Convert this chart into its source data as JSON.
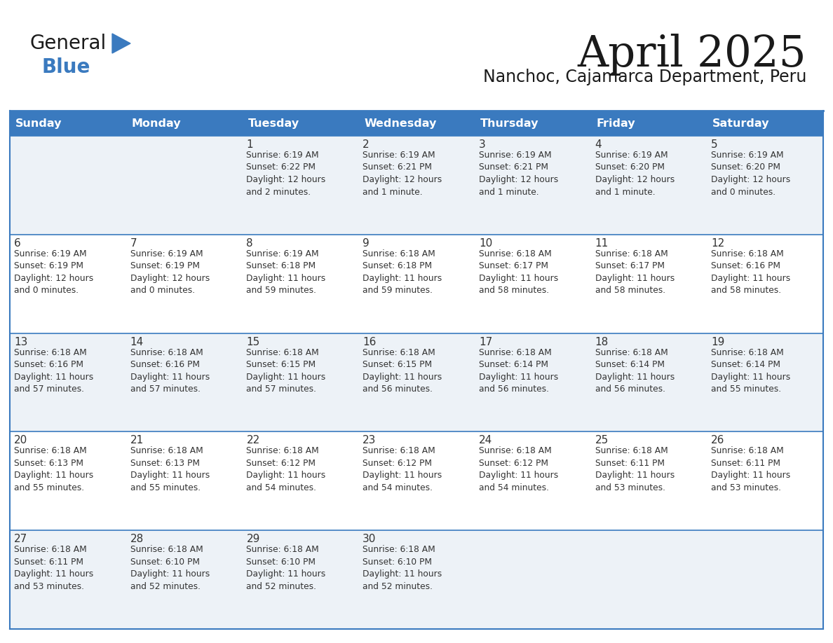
{
  "title": "April 2025",
  "subtitle": "Nanchoc, Cajamarca Department, Peru",
  "header_bg_color": "#3a7abf",
  "header_text_color": "#ffffff",
  "row_bg_odd": "#edf2f7",
  "row_bg_even": "#ffffff",
  "border_color": "#3a7abf",
  "text_color": "#333333",
  "days_of_week": [
    "Sunday",
    "Monday",
    "Tuesday",
    "Wednesday",
    "Thursday",
    "Friday",
    "Saturday"
  ],
  "calendar_data": [
    [
      "",
      "",
      "1\nSunrise: 6:19 AM\nSunset: 6:22 PM\nDaylight: 12 hours\nand 2 minutes.",
      "2\nSunrise: 6:19 AM\nSunset: 6:21 PM\nDaylight: 12 hours\nand 1 minute.",
      "3\nSunrise: 6:19 AM\nSunset: 6:21 PM\nDaylight: 12 hours\nand 1 minute.",
      "4\nSunrise: 6:19 AM\nSunset: 6:20 PM\nDaylight: 12 hours\nand 1 minute.",
      "5\nSunrise: 6:19 AM\nSunset: 6:20 PM\nDaylight: 12 hours\nand 0 minutes."
    ],
    [
      "6\nSunrise: 6:19 AM\nSunset: 6:19 PM\nDaylight: 12 hours\nand 0 minutes.",
      "7\nSunrise: 6:19 AM\nSunset: 6:19 PM\nDaylight: 12 hours\nand 0 minutes.",
      "8\nSunrise: 6:19 AM\nSunset: 6:18 PM\nDaylight: 11 hours\nand 59 minutes.",
      "9\nSunrise: 6:18 AM\nSunset: 6:18 PM\nDaylight: 11 hours\nand 59 minutes.",
      "10\nSunrise: 6:18 AM\nSunset: 6:17 PM\nDaylight: 11 hours\nand 58 minutes.",
      "11\nSunrise: 6:18 AM\nSunset: 6:17 PM\nDaylight: 11 hours\nand 58 minutes.",
      "12\nSunrise: 6:18 AM\nSunset: 6:16 PM\nDaylight: 11 hours\nand 58 minutes."
    ],
    [
      "13\nSunrise: 6:18 AM\nSunset: 6:16 PM\nDaylight: 11 hours\nand 57 minutes.",
      "14\nSunrise: 6:18 AM\nSunset: 6:16 PM\nDaylight: 11 hours\nand 57 minutes.",
      "15\nSunrise: 6:18 AM\nSunset: 6:15 PM\nDaylight: 11 hours\nand 57 minutes.",
      "16\nSunrise: 6:18 AM\nSunset: 6:15 PM\nDaylight: 11 hours\nand 56 minutes.",
      "17\nSunrise: 6:18 AM\nSunset: 6:14 PM\nDaylight: 11 hours\nand 56 minutes.",
      "18\nSunrise: 6:18 AM\nSunset: 6:14 PM\nDaylight: 11 hours\nand 56 minutes.",
      "19\nSunrise: 6:18 AM\nSunset: 6:14 PM\nDaylight: 11 hours\nand 55 minutes."
    ],
    [
      "20\nSunrise: 6:18 AM\nSunset: 6:13 PM\nDaylight: 11 hours\nand 55 minutes.",
      "21\nSunrise: 6:18 AM\nSunset: 6:13 PM\nDaylight: 11 hours\nand 55 minutes.",
      "22\nSunrise: 6:18 AM\nSunset: 6:12 PM\nDaylight: 11 hours\nand 54 minutes.",
      "23\nSunrise: 6:18 AM\nSunset: 6:12 PM\nDaylight: 11 hours\nand 54 minutes.",
      "24\nSunrise: 6:18 AM\nSunset: 6:12 PM\nDaylight: 11 hours\nand 54 minutes.",
      "25\nSunrise: 6:18 AM\nSunset: 6:11 PM\nDaylight: 11 hours\nand 53 minutes.",
      "26\nSunrise: 6:18 AM\nSunset: 6:11 PM\nDaylight: 11 hours\nand 53 minutes."
    ],
    [
      "27\nSunrise: 6:18 AM\nSunset: 6:11 PM\nDaylight: 11 hours\nand 53 minutes.",
      "28\nSunrise: 6:18 AM\nSunset: 6:10 PM\nDaylight: 11 hours\nand 52 minutes.",
      "29\nSunrise: 6:18 AM\nSunset: 6:10 PM\nDaylight: 11 hours\nand 52 minutes.",
      "30\nSunrise: 6:18 AM\nSunset: 6:10 PM\nDaylight: 11 hours\nand 52 minutes.",
      "",
      "",
      ""
    ]
  ],
  "logo_color_general": "#1a1a1a",
  "logo_color_blue": "#3a7abf",
  "title_color": "#1a1a1a",
  "subtitle_color": "#1a1a1a"
}
